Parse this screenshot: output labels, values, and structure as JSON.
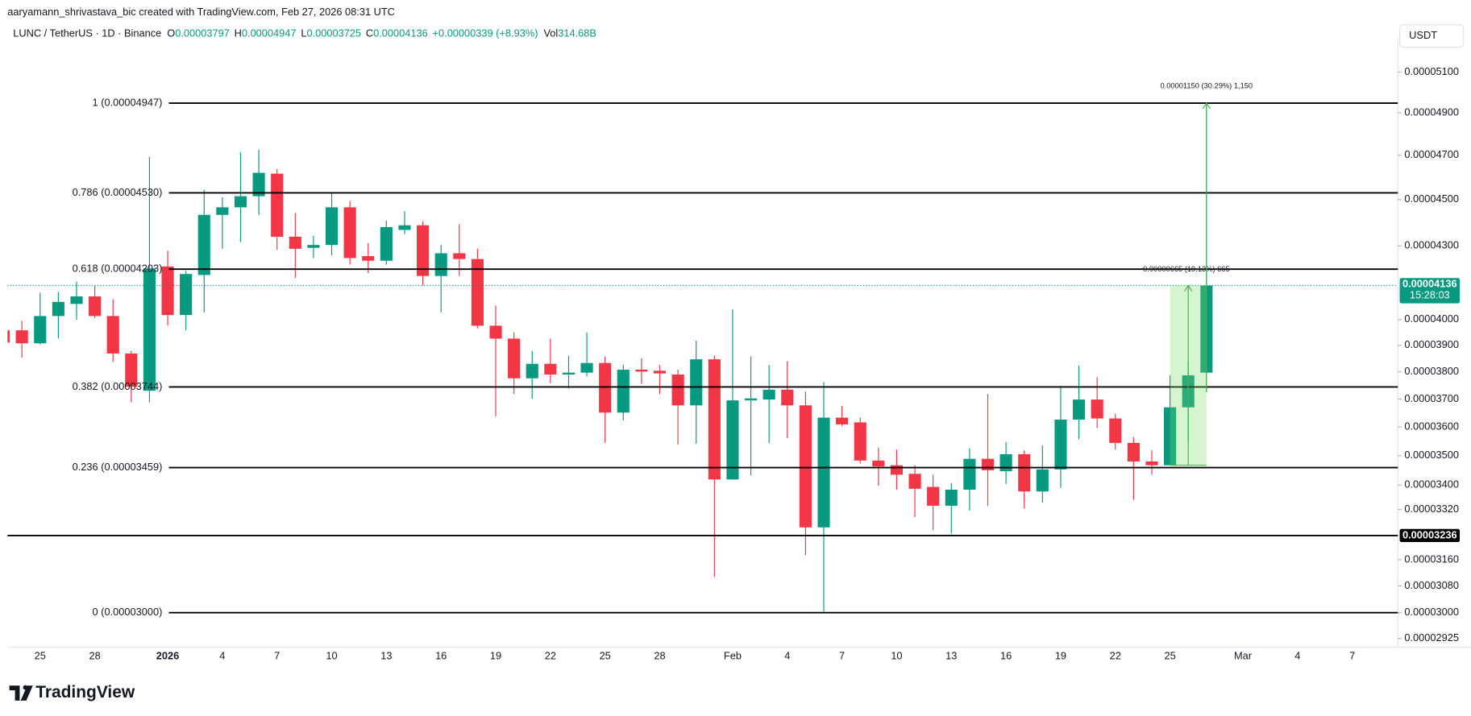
{
  "header": {
    "attribution": "aaryamann_shrivastava_bic created with TradingView.com, Feb 27, 2026 08:31 UTC",
    "symbol": "LUNC / TetherUS · 1D · Binance",
    "labels": [
      "O",
      "H",
      "L",
      "C"
    ],
    "change": "+0.00000339 (+8.93%)",
    "volume_label": "Vol",
    "volume": "314.68B"
  },
  "currency_button": "USDT",
  "logo": "TradingView",
  "chart_data": {
    "type": "candlestick",
    "log_scale": true,
    "grid": false,
    "up_color": "#089981",
    "down_color": "#f23645",
    "categories": [
      null,
      null,
      "25",
      null,
      null,
      "28",
      null,
      null,
      null,
      "2026",
      null,
      null,
      "4",
      null,
      null,
      "7",
      null,
      null,
      "10",
      null,
      null,
      "13",
      null,
      null,
      "16",
      null,
      null,
      "19",
      null,
      null,
      "22",
      null,
      null,
      "25",
      null,
      null,
      "28",
      null,
      null,
      null,
      "Feb",
      null,
      null,
      "4",
      null,
      null,
      "7",
      null,
      null,
      "10",
      null,
      null,
      "13",
      null,
      null,
      "16",
      null,
      null,
      "19",
      null,
      null,
      "22",
      null,
      null,
      "25",
      null,
      null,
      null,
      "Mar",
      null,
      null,
      "4",
      null,
      null,
      "7",
      null,
      null
    ],
    "open": [
      3.958e-05,
      3.958e-05,
      3.908e-05,
      4.014e-05,
      4.062e-05,
      4.092e-05,
      4.014e-05,
      3.869e-05,
      3.73e-05,
      4.214e-05,
      4.018e-05,
      4.179e-05,
      4.433e-05,
      4.466e-05,
      4.515e-05,
      4.616e-05,
      4.339e-05,
      4.292e-05,
      4.304e-05,
      4.466e-05,
      4.257e-05,
      4.238e-05,
      4.368e-05,
      4.388e-05,
      4.175e-05,
      4.269e-05,
      4.245e-05,
      3.976e-05,
      3.926e-05,
      3.776e-05,
      3.83e-05,
      3.79e-05,
      3.797e-05,
      3.833e-05,
      3.651e-05,
      3.808e-05,
      3.804e-05,
      3.79e-05,
      3.677e-05,
      3.847e-05,
      3.419e-05,
      3.695e-05,
      3.698e-05,
      3.734e-05,
      3.677e-05,
      3.262e-05,
      3.633e-05,
      3.616e-05,
      3.483e-05,
      3.467e-05,
      3.438e-05,
      3.394e-05,
      3.332e-05,
      3.385e-05,
      3.489e-05,
      3.447e-05,
      3.505e-05,
      3.379e-05,
      3.453e-05,
      3.626e-05,
      3.698e-05,
      3.63e-05,
      3.544e-05,
      3.48e-05,
      3.467e-05,
      3.67e-05,
      3.797e-05,
      null,
      null,
      null,
      null,
      null,
      null,
      null,
      null,
      null,
      null
    ],
    "high": [
      3.987e-05,
      3.995e-05,
      4.107e-05,
      4.11e-05,
      4.152e-05,
      4.136e-05,
      4.081e-05,
      3.879e-05,
      4.692e-05,
      4.28e-05,
      4.195e-05,
      4.543e-05,
      4.51e-05,
      4.714e-05,
      4.726e-05,
      4.637e-05,
      4.441e-05,
      4.343e-05,
      4.527e-05,
      4.494e-05,
      4.312e-05,
      4.408e-05,
      4.449e-05,
      4.404e-05,
      4.304e-05,
      4.392e-05,
      4.288e-05,
      4.055e-05,
      3.95e-05,
      3.879e-05,
      3.926e-05,
      3.861e-05,
      3.95e-05,
      3.858e-05,
      3.826e-05,
      3.851e-05,
      3.826e-05,
      3.808e-05,
      3.918e-05,
      3.861e-05,
      4.04e-05,
      3.858e-05,
      3.826e-05,
      3.84e-05,
      3.727e-05,
      3.762e-05,
      3.674e-05,
      3.633e-05,
      3.528e-05,
      3.521e-05,
      3.467e-05,
      3.435e-05,
      3.407e-05,
      3.525e-05,
      3.718e-05,
      3.547e-05,
      3.518e-05,
      3.535e-05,
      3.748e-05,
      3.823e-05,
      3.78e-05,
      3.647e-05,
      3.564e-05,
      3.518e-05,
      3.787e-05,
      3.84e-05,
      4.947e-05,
      null,
      null,
      null,
      null,
      null,
      null,
      null,
      null,
      null,
      null
    ],
    "low": [
      3.897e-05,
      3.854e-05,
      3.904e-05,
      3.926e-05,
      3.999e-05,
      4.006e-05,
      3.837e-05,
      3.688e-05,
      3.688e-05,
      3.976e-05,
      3.958e-05,
      4.029e-05,
      4.288e-05,
      4.316e-05,
      4.433e-05,
      4.284e-05,
      4.167e-05,
      4.249e-05,
      4.261e-05,
      4.222e-05,
      4.187e-05,
      4.222e-05,
      4.351e-05,
      4.136e-05,
      4.029e-05,
      4.175e-05,
      3.966e-05,
      3.637e-05,
      3.718e-05,
      3.701e-05,
      3.758e-05,
      3.738e-05,
      3.783e-05,
      3.544e-05,
      3.623e-05,
      3.755e-05,
      3.718e-05,
      3.538e-05,
      3.541e-05,
      3.107e-05,
      3.419e-05,
      3.432e-05,
      3.544e-05,
      3.561e-05,
      3.174e-05,
      3.003e-05,
      3.603e-05,
      3.473e-05,
      3.398e-05,
      3.385e-05,
      3.295e-05,
      3.253e-05,
      3.242e-05,
      3.317e-05,
      3.332e-05,
      3.404e-05,
      3.323e-05,
      3.342e-05,
      3.391e-05,
      3.557e-05,
      3.596e-05,
      3.521e-05,
      3.351e-05,
      3.435e-05,
      3.467e-05,
      3.544e-05,
      3.725e-05,
      null,
      null,
      null,
      null,
      null,
      null,
      null,
      null,
      null,
      null
    ],
    "close": [
      3.911e-05,
      3.908e-05,
      4.014e-05,
      4.07e-05,
      4.092e-05,
      4.014e-05,
      3.869e-05,
      3.745e-05,
      4.206e-05,
      4.018e-05,
      4.183e-05,
      4.433e-05,
      4.466e-05,
      4.515e-05,
      4.62e-05,
      4.339e-05,
      4.288e-05,
      4.304e-05,
      4.466e-05,
      4.249e-05,
      4.238e-05,
      4.38e-05,
      4.388e-05,
      4.175e-05,
      4.269e-05,
      4.245e-05,
      3.976e-05,
      3.926e-05,
      3.776e-05,
      3.83e-05,
      3.79e-05,
      3.797e-05,
      3.833e-05,
      3.651e-05,
      3.808e-05,
      3.801e-05,
      3.794e-05,
      3.677e-05,
      3.847e-05,
      3.419e-05,
      3.695e-05,
      3.702e-05,
      3.734e-05,
      3.677e-05,
      3.262e-05,
      3.633e-05,
      3.609e-05,
      3.483e-05,
      3.463e-05,
      3.435e-05,
      3.388e-05,
      3.332e-05,
      3.385e-05,
      3.489e-05,
      3.45e-05,
      3.505e-05,
      3.379e-05,
      3.453e-05,
      3.626e-05,
      3.698e-05,
      3.63e-05,
      3.544e-05,
      3.48e-05,
      3.467e-05,
      3.67e-05,
      3.787e-05,
      4.136e-05,
      null,
      null,
      null,
      null,
      null,
      null,
      null,
      null,
      null,
      null
    ],
    "ylim": [
      2.9e-05,
      5.25e-05
    ],
    "yticks": [
      {
        "value": 5.1e-05,
        "label": "0.00005100"
      },
      {
        "value": 4.9e-05,
        "label": "0.00004900"
      },
      {
        "value": 4.7e-05,
        "label": "0.00004700"
      },
      {
        "value": 4.5e-05,
        "label": "0.00004500"
      },
      {
        "value": 4.3e-05,
        "label": "0.00004300"
      },
      {
        "value": 4e-05,
        "label": "0.00004000"
      },
      {
        "value": 3.9e-05,
        "label": "0.00003900"
      },
      {
        "value": 3.8e-05,
        "label": "0.00003800"
      },
      {
        "value": 3.7e-05,
        "label": "0.00003700"
      },
      {
        "value": 3.6e-05,
        "label": "0.00003600"
      },
      {
        "value": 3.5e-05,
        "label": "0.00003500"
      },
      {
        "value": 3.4e-05,
        "label": "0.00003400"
      },
      {
        "value": 3.32e-05,
        "label": "0.00003320"
      },
      {
        "value": 3.16e-05,
        "label": "0.00003160"
      },
      {
        "value": 3.08e-05,
        "label": "0.00003080"
      },
      {
        "value": 3e-05,
        "label": "0.00003000"
      },
      {
        "value": 2.925e-05,
        "label": "0.00002925"
      }
    ],
    "fib_levels": [
      {
        "label": "1 (0.00004947)",
        "price": 4.947e-05
      },
      {
        "label": "0.786 (0.00004530)",
        "price": 4.53e-05
      },
      {
        "label": "0.618 (0.00004203)",
        "price": 4.203e-05
      },
      {
        "label": "0.382 (0.00003744)",
        "price": 3.744e-05
      },
      {
        "label": "0.236 (0.00003459)",
        "price": 3.459e-05
      },
      {
        "label": "0 (0.00003000)",
        "price": 3e-05
      }
    ],
    "price_line": 3.236e-05,
    "countdown": "15:28:03",
    "measurements": [
      "0.00001150 (30.29%) 1,150",
      "0.00000665 (19.13%) 665"
    ]
  }
}
